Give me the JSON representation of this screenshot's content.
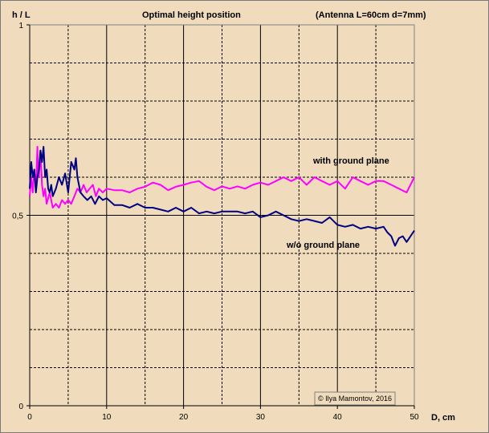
{
  "chart_data": {
    "type": "line",
    "title": "Optimal  height  position",
    "subtitle": "(Antenna   L=60cm  d=7mm)",
    "xlabel": "D, cm",
    "ylabel": "h / L",
    "xlim": [
      0,
      50
    ],
    "ylim": [
      0,
      1
    ],
    "x_ticks": [
      "0",
      "10",
      "20",
      "30",
      "40",
      "50"
    ],
    "y_ticks": [
      "0",
      "0,5",
      "1"
    ],
    "grid": "major solid every 10 / 0.5, dashed minor every 5 / 0.1",
    "copyright": "© Ilya Mamontov, 2016",
    "series": [
      {
        "name": "with ground plane",
        "color": "#ff00ff",
        "points": [
          [
            0,
            0.55
          ],
          [
            0.2,
            0.6
          ],
          [
            0.4,
            0.56
          ],
          [
            0.6,
            0.62
          ],
          [
            0.8,
            0.57
          ],
          [
            1.0,
            0.68
          ],
          [
            1.1,
            0.61
          ],
          [
            1.2,
            0.6
          ],
          [
            1.4,
            0.67
          ],
          [
            1.6,
            0.58
          ],
          [
            1.8,
            0.55
          ],
          [
            2.0,
            0.57
          ],
          [
            2.2,
            0.53
          ],
          [
            2.6,
            0.56
          ],
          [
            3.0,
            0.52
          ],
          [
            3.4,
            0.53
          ],
          [
            3.8,
            0.52
          ],
          [
            4.2,
            0.54
          ],
          [
            4.6,
            0.53
          ],
          [
            5.0,
            0.54
          ],
          [
            5.4,
            0.53
          ],
          [
            5.8,
            0.55
          ],
          [
            6.2,
            0.57
          ],
          [
            6.6,
            0.56
          ],
          [
            7.0,
            0.58
          ],
          [
            7.4,
            0.56
          ],
          [
            7.8,
            0.57
          ],
          [
            8.2,
            0.58
          ],
          [
            8.6,
            0.55
          ],
          [
            9.0,
            0.57
          ],
          [
            9.5,
            0.56
          ],
          [
            10,
            0.57
          ],
          [
            11,
            0.566
          ],
          [
            12,
            0.566
          ],
          [
            13,
            0.56
          ],
          [
            14,
            0.57
          ],
          [
            15,
            0.575
          ],
          [
            16,
            0.586
          ],
          [
            17,
            0.58
          ],
          [
            18,
            0.566
          ],
          [
            19,
            0.575
          ],
          [
            20,
            0.58
          ],
          [
            21,
            0.586
          ],
          [
            22,
            0.59
          ],
          [
            23,
            0.575
          ],
          [
            24,
            0.566
          ],
          [
            25,
            0.576
          ],
          [
            26,
            0.57
          ],
          [
            27,
            0.576
          ],
          [
            28,
            0.57
          ],
          [
            29,
            0.58
          ],
          [
            30,
            0.586
          ],
          [
            31,
            0.58
          ],
          [
            32,
            0.59
          ],
          [
            33,
            0.6
          ],
          [
            34,
            0.59
          ],
          [
            35,
            0.6
          ],
          [
            36,
            0.58
          ],
          [
            37,
            0.6
          ],
          [
            38,
            0.59
          ],
          [
            39,
            0.58
          ],
          [
            40,
            0.59
          ],
          [
            41,
            0.57
          ],
          [
            42,
            0.6
          ],
          [
            43,
            0.59
          ],
          [
            44,
            0.58
          ],
          [
            45,
            0.59
          ],
          [
            46,
            0.59
          ],
          [
            47,
            0.58
          ],
          [
            48,
            0.57
          ],
          [
            49,
            0.56
          ],
          [
            50,
            0.6
          ]
        ]
      },
      {
        "name": "w/o ground plane",
        "color": "#000080",
        "points": [
          [
            0,
            0.57
          ],
          [
            0.2,
            0.64
          ],
          [
            0.4,
            0.6
          ],
          [
            0.6,
            0.62
          ],
          [
            0.8,
            0.56
          ],
          [
            1.0,
            0.6
          ],
          [
            1.2,
            0.62
          ],
          [
            1.4,
            0.67
          ],
          [
            1.6,
            0.64
          ],
          [
            1.8,
            0.68
          ],
          [
            2.0,
            0.6
          ],
          [
            2.2,
            0.62
          ],
          [
            2.4,
            0.57
          ],
          [
            2.6,
            0.56
          ],
          [
            2.8,
            0.58
          ],
          [
            3.0,
            0.55
          ],
          [
            3.4,
            0.57
          ],
          [
            3.8,
            0.6
          ],
          [
            4.2,
            0.58
          ],
          [
            4.6,
            0.61
          ],
          [
            5.0,
            0.56
          ],
          [
            5.4,
            0.64
          ],
          [
            5.8,
            0.62
          ],
          [
            6.0,
            0.65
          ],
          [
            6.2,
            0.6
          ],
          [
            6.6,
            0.56
          ],
          [
            7.0,
            0.55
          ],
          [
            7.5,
            0.54
          ],
          [
            8.0,
            0.55
          ],
          [
            8.5,
            0.53
          ],
          [
            9.0,
            0.55
          ],
          [
            9.5,
            0.54
          ],
          [
            10,
            0.545
          ],
          [
            11,
            0.527
          ],
          [
            12,
            0.527
          ],
          [
            13,
            0.52
          ],
          [
            14,
            0.53
          ],
          [
            15,
            0.52
          ],
          [
            16,
            0.52
          ],
          [
            17,
            0.515
          ],
          [
            18,
            0.51
          ],
          [
            19,
            0.52
          ],
          [
            20,
            0.51
          ],
          [
            21,
            0.52
          ],
          [
            22,
            0.505
          ],
          [
            23,
            0.51
          ],
          [
            24,
            0.505
          ],
          [
            25,
            0.51
          ],
          [
            26,
            0.51
          ],
          [
            27,
            0.51
          ],
          [
            28,
            0.505
          ],
          [
            29,
            0.51
          ],
          [
            30,
            0.495
          ],
          [
            31,
            0.5
          ],
          [
            32,
            0.51
          ],
          [
            33,
            0.5
          ],
          [
            34,
            0.49
          ],
          [
            35,
            0.485
          ],
          [
            36,
            0.49
          ],
          [
            37,
            0.485
          ],
          [
            38,
            0.48
          ],
          [
            39,
            0.495
          ],
          [
            40,
            0.475
          ],
          [
            41,
            0.47
          ],
          [
            42,
            0.475
          ],
          [
            43,
            0.465
          ],
          [
            44,
            0.47
          ],
          [
            45,
            0.465
          ],
          [
            46,
            0.47
          ],
          [
            46.5,
            0.455
          ],
          [
            47,
            0.445
          ],
          [
            47.5,
            0.42
          ],
          [
            48,
            0.44
          ],
          [
            48.5,
            0.445
          ],
          [
            49,
            0.43
          ],
          [
            50,
            0.46
          ]
        ]
      }
    ]
  }
}
